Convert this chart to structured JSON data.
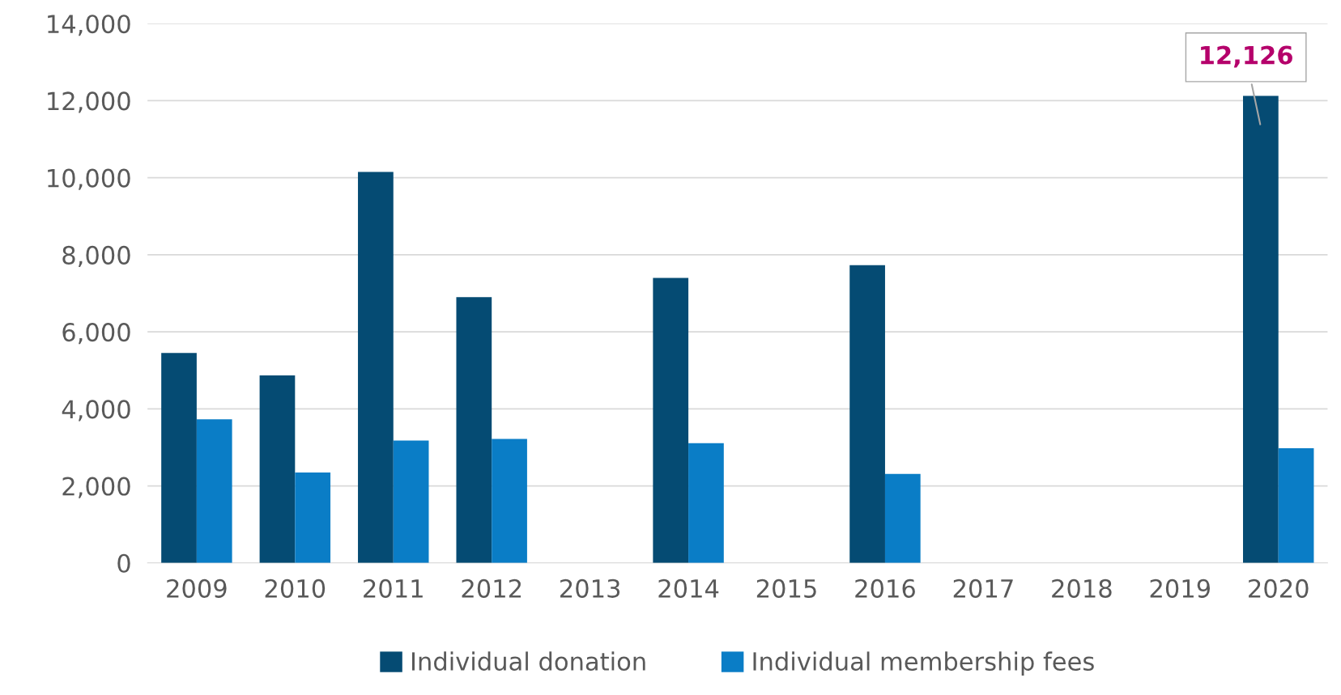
{
  "chart_data": {
    "type": "bar",
    "categories": [
      "2009",
      "2010",
      "2011",
      "2012",
      "2013",
      "2014",
      "2015",
      "2016",
      "2017",
      "2018",
      "2019",
      "2020"
    ],
    "series": [
      {
        "name": "Individual donation",
        "color": "#054b73",
        "values": [
          5450,
          4870,
          10150,
          6900,
          null,
          7400,
          null,
          7730,
          null,
          null,
          null,
          12126
        ]
      },
      {
        "name": "Individual membership fees",
        "color": "#0a7dc6",
        "values": [
          3730,
          2350,
          3180,
          3220,
          null,
          3110,
          null,
          2310,
          null,
          null,
          null,
          2980
        ]
      }
    ],
    "ylim": [
      0,
      14000
    ],
    "yticks": [
      {
        "value": 0,
        "label": "0"
      },
      {
        "value": 2000,
        "label": "2,000"
      },
      {
        "value": 4000,
        "label": "4,000"
      },
      {
        "value": 6000,
        "label": "6,000"
      },
      {
        "value": 8000,
        "label": "8,000"
      },
      {
        "value": 10000,
        "label": "10,000"
      },
      {
        "value": 12000,
        "label": "12,000"
      },
      {
        "value": 14000,
        "label": "14,000"
      }
    ],
    "grid": "y",
    "legend": "bottom",
    "annotations": [
      {
        "text": "12,126",
        "x": "2020",
        "y": 12126
      }
    ]
  }
}
